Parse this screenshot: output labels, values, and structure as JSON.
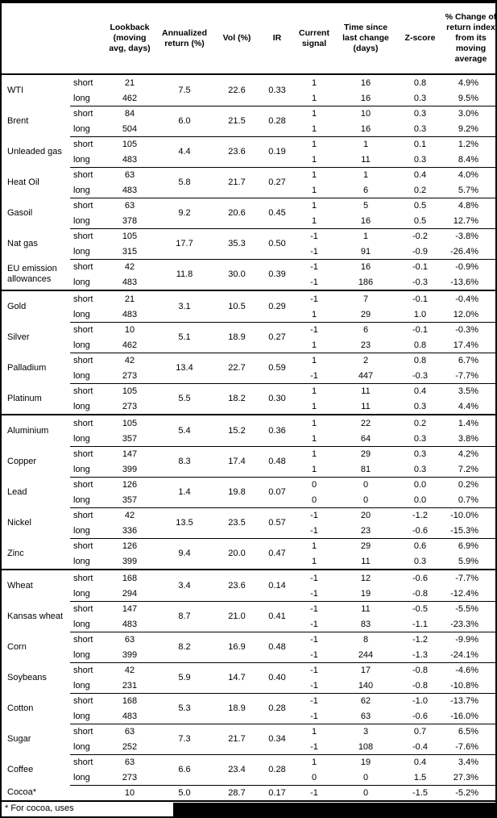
{
  "table": {
    "columns": [
      {
        "id": "name",
        "label": ""
      },
      {
        "id": "pos",
        "label": ""
      },
      {
        "id": "lookback",
        "label": "Lookback\n(moving\navg, days)"
      },
      {
        "id": "annualized",
        "label": "Annualized\nreturn (%)"
      },
      {
        "id": "vol",
        "label": "Vol (%)"
      },
      {
        "id": "ir",
        "label": "IR"
      },
      {
        "id": "signal",
        "label": "Current\nsignal"
      },
      {
        "id": "time",
        "label": "Time since\nlast change\n(days)"
      },
      {
        "id": "zscore",
        "label": "Z-score"
      },
      {
        "id": "pct",
        "label": "% Change of\nreturn index\nfrom its\nmoving\naverage"
      }
    ],
    "sections": [
      {
        "name": "energy",
        "commodities": [
          {
            "name": "WTI",
            "annualized": "7.5",
            "vol": "22.6",
            "ir": "0.33",
            "rows": [
              {
                "pos": "short",
                "lookback": "21",
                "signal": "1",
                "time": "16",
                "zscore": "0.8",
                "pct": "4.9%"
              },
              {
                "pos": "long",
                "lookback": "462",
                "signal": "1",
                "time": "16",
                "zscore": "0.3",
                "pct": "9.5%"
              }
            ]
          },
          {
            "name": "Brent",
            "annualized": "6.0",
            "vol": "21.5",
            "ir": "0.28",
            "rows": [
              {
                "pos": "short",
                "lookback": "84",
                "signal": "1",
                "time": "10",
                "zscore": "0.3",
                "pct": "3.0%"
              },
              {
                "pos": "long",
                "lookback": "504",
                "signal": "1",
                "time": "16",
                "zscore": "0.3",
                "pct": "9.2%"
              }
            ]
          },
          {
            "name": "Unleaded gas",
            "annualized": "4.4",
            "vol": "23.6",
            "ir": "0.19",
            "rows": [
              {
                "pos": "short",
                "lookback": "105",
                "signal": "1",
                "time": "1",
                "zscore": "0.1",
                "pct": "1.2%"
              },
              {
                "pos": "long",
                "lookback": "483",
                "signal": "1",
                "time": "11",
                "zscore": "0.3",
                "pct": "8.4%"
              }
            ]
          },
          {
            "name": "Heat Oil",
            "annualized": "5.8",
            "vol": "21.7",
            "ir": "0.27",
            "rows": [
              {
                "pos": "short",
                "lookback": "63",
                "signal": "1",
                "time": "1",
                "zscore": "0.4",
                "pct": "4.0%"
              },
              {
                "pos": "long",
                "lookback": "483",
                "signal": "1",
                "time": "6",
                "zscore": "0.2",
                "pct": "5.7%"
              }
            ]
          },
          {
            "name": "Gasoil",
            "annualized": "9.2",
            "vol": "20.6",
            "ir": "0.45",
            "rows": [
              {
                "pos": "short",
                "lookback": "63",
                "signal": "1",
                "time": "5",
                "zscore": "0.5",
                "pct": "4.8%"
              },
              {
                "pos": "long",
                "lookback": "378",
                "signal": "1",
                "time": "16",
                "zscore": "0.5",
                "pct": "12.7%"
              }
            ]
          },
          {
            "name": "Nat gas",
            "annualized": "17.7",
            "vol": "35.3",
            "ir": "0.50",
            "rows": [
              {
                "pos": "short",
                "lookback": "105",
                "signal": "-1",
                "time": "1",
                "zscore": "-0.2",
                "pct": "-3.8%"
              },
              {
                "pos": "long",
                "lookback": "315",
                "signal": "-1",
                "time": "91",
                "zscore": "-0.9",
                "pct": "-26.4%"
              }
            ]
          },
          {
            "name": "EU emission allowances",
            "annualized": "11.8",
            "vol": "30.0",
            "ir": "0.39",
            "rows": [
              {
                "pos": "short",
                "lookback": "42",
                "signal": "-1",
                "time": "16",
                "zscore": "-0.1",
                "pct": "-0.9%"
              },
              {
                "pos": "long",
                "lookback": "483",
                "signal": "-1",
                "time": "186",
                "zscore": "-0.3",
                "pct": "-13.6%"
              }
            ]
          }
        ]
      },
      {
        "name": "precious-metals",
        "commodities": [
          {
            "name": "Gold",
            "annualized": "3.1",
            "vol": "10.5",
            "ir": "0.29",
            "rows": [
              {
                "pos": "short",
                "lookback": "21",
                "signal": "-1",
                "time": "7",
                "zscore": "-0.1",
                "pct": "-0.4%"
              },
              {
                "pos": "long",
                "lookback": "483",
                "signal": "1",
                "time": "29",
                "zscore": "1.0",
                "pct": "12.0%"
              }
            ]
          },
          {
            "name": "Silver",
            "annualized": "5.1",
            "vol": "18.9",
            "ir": "0.27",
            "rows": [
              {
                "pos": "short",
                "lookback": "10",
                "signal": "-1",
                "time": "6",
                "zscore": "-0.1",
                "pct": "-0.3%"
              },
              {
                "pos": "long",
                "lookback": "462",
                "signal": "1",
                "time": "23",
                "zscore": "0.8",
                "pct": "17.4%"
              }
            ]
          },
          {
            "name": "Palladium",
            "annualized": "13.4",
            "vol": "22.7",
            "ir": "0.59",
            "rows": [
              {
                "pos": "short",
                "lookback": "42",
                "signal": "1",
                "time": "2",
                "zscore": "0.8",
                "pct": "6.7%"
              },
              {
                "pos": "long",
                "lookback": "273",
                "signal": "-1",
                "time": "447",
                "zscore": "-0.3",
                "pct": "-7.7%"
              }
            ]
          },
          {
            "name": "Platinum",
            "annualized": "5.5",
            "vol": "18.2",
            "ir": "0.30",
            "rows": [
              {
                "pos": "short",
                "lookback": "105",
                "signal": "1",
                "time": "11",
                "zscore": "0.4",
                "pct": "3.5%"
              },
              {
                "pos": "long",
                "lookback": "273",
                "signal": "1",
                "time": "11",
                "zscore": "0.3",
                "pct": "4.4%"
              }
            ]
          }
        ]
      },
      {
        "name": "base-metals",
        "commodities": [
          {
            "name": "Aluminium",
            "annualized": "5.4",
            "vol": "15.2",
            "ir": "0.36",
            "rows": [
              {
                "pos": "short",
                "lookback": "105",
                "signal": "1",
                "time": "22",
                "zscore": "0.2",
                "pct": "1.4%"
              },
              {
                "pos": "long",
                "lookback": "357",
                "signal": "1",
                "time": "64",
                "zscore": "0.3",
                "pct": "3.8%"
              }
            ]
          },
          {
            "name": "Copper",
            "annualized": "8.3",
            "vol": "17.4",
            "ir": "0.48",
            "rows": [
              {
                "pos": "short",
                "lookback": "147",
                "signal": "1",
                "time": "29",
                "zscore": "0.3",
                "pct": "4.2%"
              },
              {
                "pos": "long",
                "lookback": "399",
                "signal": "1",
                "time": "81",
                "zscore": "0.3",
                "pct": "7.2%"
              }
            ]
          },
          {
            "name": "Lead",
            "annualized": "1.4",
            "vol": "19.8",
            "ir": "0.07",
            "rows": [
              {
                "pos": "short",
                "lookback": "126",
                "signal": "0",
                "time": "0",
                "zscore": "0.0",
                "pct": "0.2%"
              },
              {
                "pos": "long",
                "lookback": "357",
                "signal": "0",
                "time": "0",
                "zscore": "0.0",
                "pct": "0.7%"
              }
            ]
          },
          {
            "name": "Nickel",
            "annualized": "13.5",
            "vol": "23.5",
            "ir": "0.57",
            "rows": [
              {
                "pos": "short",
                "lookback": "42",
                "signal": "-1",
                "time": "20",
                "zscore": "-1.2",
                "pct": "-10.0%"
              },
              {
                "pos": "long",
                "lookback": "336",
                "signal": "-1",
                "time": "23",
                "zscore": "-0.6",
                "pct": "-15.3%"
              }
            ]
          },
          {
            "name": "Zinc",
            "annualized": "9.4",
            "vol": "20.0",
            "ir": "0.47",
            "rows": [
              {
                "pos": "short",
                "lookback": "126",
                "signal": "1",
                "time": "29",
                "zscore": "0.6",
                "pct": "6.9%"
              },
              {
                "pos": "long",
                "lookback": "399",
                "signal": "1",
                "time": "11",
                "zscore": "0.3",
                "pct": "5.9%"
              }
            ]
          }
        ]
      },
      {
        "name": "agriculture",
        "commodities": [
          {
            "name": "Wheat",
            "annualized": "3.4",
            "vol": "23.6",
            "ir": "0.14",
            "rows": [
              {
                "pos": "short",
                "lookback": "168",
                "signal": "-1",
                "time": "12",
                "zscore": "-0.6",
                "pct": "-7.7%"
              },
              {
                "pos": "long",
                "lookback": "294",
                "signal": "-1",
                "time": "19",
                "zscore": "-0.8",
                "pct": "-12.4%"
              }
            ]
          },
          {
            "name": "Kansas wheat",
            "annualized": "8.7",
            "vol": "21.0",
            "ir": "0.41",
            "rows": [
              {
                "pos": "short",
                "lookback": "147",
                "signal": "-1",
                "time": "11",
                "zscore": "-0.5",
                "pct": "-5.5%"
              },
              {
                "pos": "long",
                "lookback": "483",
                "signal": "-1",
                "time": "83",
                "zscore": "-1.1",
                "pct": "-23.3%"
              }
            ]
          },
          {
            "name": "Corn",
            "annualized": "8.2",
            "vol": "16.9",
            "ir": "0.48",
            "rows": [
              {
                "pos": "short",
                "lookback": "63",
                "signal": "-1",
                "time": "8",
                "zscore": "-1.2",
                "pct": "-9.9%"
              },
              {
                "pos": "long",
                "lookback": "399",
                "signal": "-1",
                "time": "244",
                "zscore": "-1.3",
                "pct": "-24.1%"
              }
            ]
          },
          {
            "name": "Soybeans",
            "annualized": "5.9",
            "vol": "14.7",
            "ir": "0.40",
            "rows": [
              {
                "pos": "short",
                "lookback": "42",
                "signal": "-1",
                "time": "17",
                "zscore": "-0.8",
                "pct": "-4.6%"
              },
              {
                "pos": "long",
                "lookback": "231",
                "signal": "-1",
                "time": "140",
                "zscore": "-0.8",
                "pct": "-10.8%"
              }
            ]
          },
          {
            "name": "Cotton",
            "annualized": "5.3",
            "vol": "18.9",
            "ir": "0.28",
            "rows": [
              {
                "pos": "short",
                "lookback": "168",
                "signal": "-1",
                "time": "62",
                "zscore": "-1.0",
                "pct": "-13.7%"
              },
              {
                "pos": "long",
                "lookback": "483",
                "signal": "-1",
                "time": "63",
                "zscore": "-0.6",
                "pct": "-16.0%"
              }
            ]
          },
          {
            "name": "Sugar",
            "annualized": "7.3",
            "vol": "21.7",
            "ir": "0.34",
            "rows": [
              {
                "pos": "short",
                "lookback": "63",
                "signal": "1",
                "time": "3",
                "zscore": "0.7",
                "pct": "6.5%"
              },
              {
                "pos": "long",
                "lookback": "252",
                "signal": "-1",
                "time": "108",
                "zscore": "-0.4",
                "pct": "-7.6%"
              }
            ]
          },
          {
            "name": "Coffee",
            "annualized": "6.6",
            "vol": "23.4",
            "ir": "0.28",
            "rows": [
              {
                "pos": "short",
                "lookback": "63",
                "signal": "1",
                "time": "19",
                "zscore": "0.4",
                "pct": "3.4%"
              },
              {
                "pos": "long",
                "lookback": "273",
                "signal": "0",
                "time": "0",
                "zscore": "1.5",
                "pct": "27.3%"
              }
            ]
          },
          {
            "name": "Cocoa*",
            "annualized": "5.0",
            "vol": "28.7",
            "ir": "0.17",
            "rows": [
              {
                "pos": "",
                "lookback": "10",
                "signal": "-1",
                "time": "0",
                "zscore": "-1.5",
                "pct": "-5.2%"
              }
            ]
          }
        ]
      }
    ]
  },
  "footnote": {
    "text": "* For cocoa, uses",
    "redacted": true
  },
  "colors": {
    "text": "#000000",
    "background": "#ffffff",
    "rule": "#000000"
  }
}
